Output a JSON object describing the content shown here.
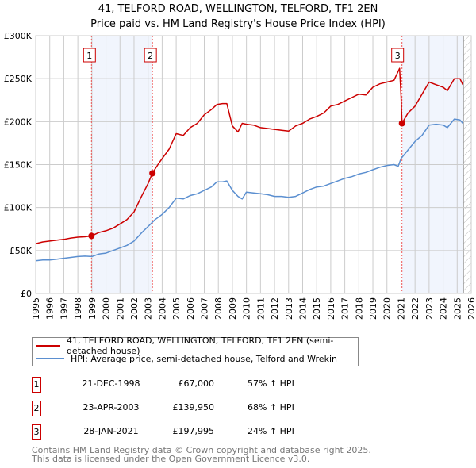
{
  "title_line1": "41, TELFORD ROAD, WELLINGTON, TELFORD, TF1 2EN",
  "title_line2": "Price paid vs. HM Land Registry's House Price Index (HPI)",
  "chart_data": {
    "type": "line",
    "title": "41, TELFORD ROAD, WELLINGTON, TELFORD, TF1 2EN — Price paid vs. HM Land Registry's House Price Index (HPI)",
    "xlim": [
      1995,
      2026
    ],
    "ylim": [
      0,
      300000
    ],
    "x_ticks": [
      1995,
      1996,
      1997,
      1998,
      1999,
      2000,
      2001,
      2002,
      2003,
      2004,
      2005,
      2006,
      2007,
      2008,
      2009,
      2010,
      2011,
      2012,
      2013,
      2014,
      2015,
      2016,
      2017,
      2018,
      2019,
      2020,
      2021,
      2022,
      2023,
      2024,
      2025,
      2026
    ],
    "y_ticks": [
      0,
      50000,
      100000,
      150000,
      200000,
      250000,
      300000
    ],
    "y_tick_labels": [
      "£0",
      "£50K",
      "£100K",
      "£150K",
      "£200K",
      "£250K",
      "£300K"
    ],
    "grid": true,
    "series": [
      {
        "name": "41, TELFORD ROAD, WELLINGTON, TELFORD, TF1 2EN (semi-detached house)",
        "color": "#cc0000",
        "x": [
          1995,
          1995.5,
          1996,
          1996.5,
          1997,
          1997.5,
          1998,
          1998.5,
          1998.97,
          1999.5,
          2000,
          2000.5,
          2001,
          2001.5,
          2002,
          2002.5,
          2003,
          2003.3,
          2003.7,
          2004,
          2004.5,
          2005,
          2005.5,
          2006,
          2006.5,
          2007,
          2007.5,
          2007.9,
          2008.3,
          2008.6,
          2009,
          2009.4,
          2009.7,
          2010,
          2010.5,
          2011,
          2011.5,
          2012,
          2012.5,
          2013,
          2013.5,
          2014,
          2014.5,
          2015,
          2015.5,
          2016,
          2016.5,
          2017,
          2017.5,
          2018,
          2018.5,
          2019,
          2019.5,
          2020,
          2020.5,
          2020.9,
          2021.0,
          2021.07,
          2021.5,
          2022,
          2022.5,
          2023,
          2023.5,
          2024,
          2024.3,
          2024.8,
          2025.2,
          2025.4
        ],
        "y": [
          58000,
          60000,
          61000,
          62000,
          63000,
          64500,
          65500,
          66000,
          67000,
          71000,
          73000,
          76000,
          81000,
          86000,
          95000,
          112000,
          128000,
          139950,
          150000,
          157000,
          168000,
          186000,
          184000,
          193000,
          198000,
          208000,
          214000,
          220000,
          221000,
          221000,
          195000,
          188000,
          198000,
          197000,
          196000,
          193000,
          192000,
          191000,
          190000,
          189000,
          195000,
          198000,
          203000,
          206000,
          210000,
          218000,
          220000,
          224000,
          228000,
          232000,
          231000,
          240000,
          244000,
          246000,
          248000,
          262000,
          230000,
          197995,
          210000,
          218000,
          232000,
          246000,
          243000,
          240000,
          236000,
          250000,
          250000,
          243000
        ]
      },
      {
        "name": "HPI: Average price, semi-detached house, Telford and Wrekin",
        "color": "#5b8fd0",
        "x": [
          1995,
          1995.5,
          1996,
          1996.5,
          1997,
          1997.5,
          1998,
          1998.5,
          1999,
          1999.5,
          2000,
          2000.5,
          2001,
          2001.5,
          2002,
          2002.5,
          2003,
          2003.5,
          2004,
          2004.5,
          2005,
          2005.5,
          2006,
          2006.5,
          2007,
          2007.5,
          2007.9,
          2008.3,
          2008.6,
          2009,
          2009.4,
          2009.7,
          2010,
          2010.5,
          2011,
          2011.5,
          2012,
          2012.5,
          2013,
          2013.5,
          2014,
          2014.5,
          2015,
          2015.5,
          2016,
          2016.5,
          2017,
          2017.5,
          2018,
          2018.5,
          2019,
          2019.5,
          2020,
          2020.5,
          2020.8,
          2021,
          2021.5,
          2022,
          2022.5,
          2023,
          2023.5,
          2024,
          2024.3,
          2024.8,
          2025.2,
          2025.4
        ],
        "y": [
          38000,
          39000,
          39000,
          40000,
          41000,
          42000,
          43000,
          43500,
          43000,
          46000,
          47000,
          50000,
          53000,
          56000,
          61000,
          70000,
          78000,
          86000,
          92000,
          100000,
          111000,
          110000,
          114000,
          116000,
          120000,
          124000,
          130000,
          130000,
          131000,
          120000,
          113000,
          110000,
          118000,
          117000,
          116000,
          115000,
          113000,
          113000,
          112000,
          113000,
          117000,
          121000,
          124000,
          125000,
          128000,
          131000,
          134000,
          136000,
          139000,
          141000,
          144000,
          147000,
          149000,
          150000,
          148000,
          157000,
          167000,
          177000,
          184000,
          196000,
          197000,
          196000,
          193000,
          203000,
          202000,
          198000
        ]
      }
    ],
    "sales": [
      {
        "label": "1",
        "date": "21-DEC-1998",
        "x": 1998.97,
        "price": "£67,000",
        "value": 67000,
        "hpi": "57% ↑ HPI"
      },
      {
        "label": "2",
        "date": "23-APR-2003",
        "x": 2003.31,
        "price": "£139,950",
        "value": 139950,
        "hpi": "68% ↑ HPI"
      },
      {
        "label": "3",
        "date": "28-JAN-2021",
        "x": 2021.07,
        "price": "£197,995",
        "value": 197995,
        "hpi": "24% ↑ HPI"
      }
    ],
    "shaded_ranges": [
      [
        1998.97,
        2003.31
      ],
      [
        2021.07,
        2025.4
      ]
    ],
    "hatched_range": [
      2025.45,
      2026
    ],
    "legend_position": "below"
  },
  "footer_line1": "Contains HM Land Registry data © Crown copyright and database right 2025.",
  "footer_line2": "This data is licensed under the Open Government Licence v3.0."
}
